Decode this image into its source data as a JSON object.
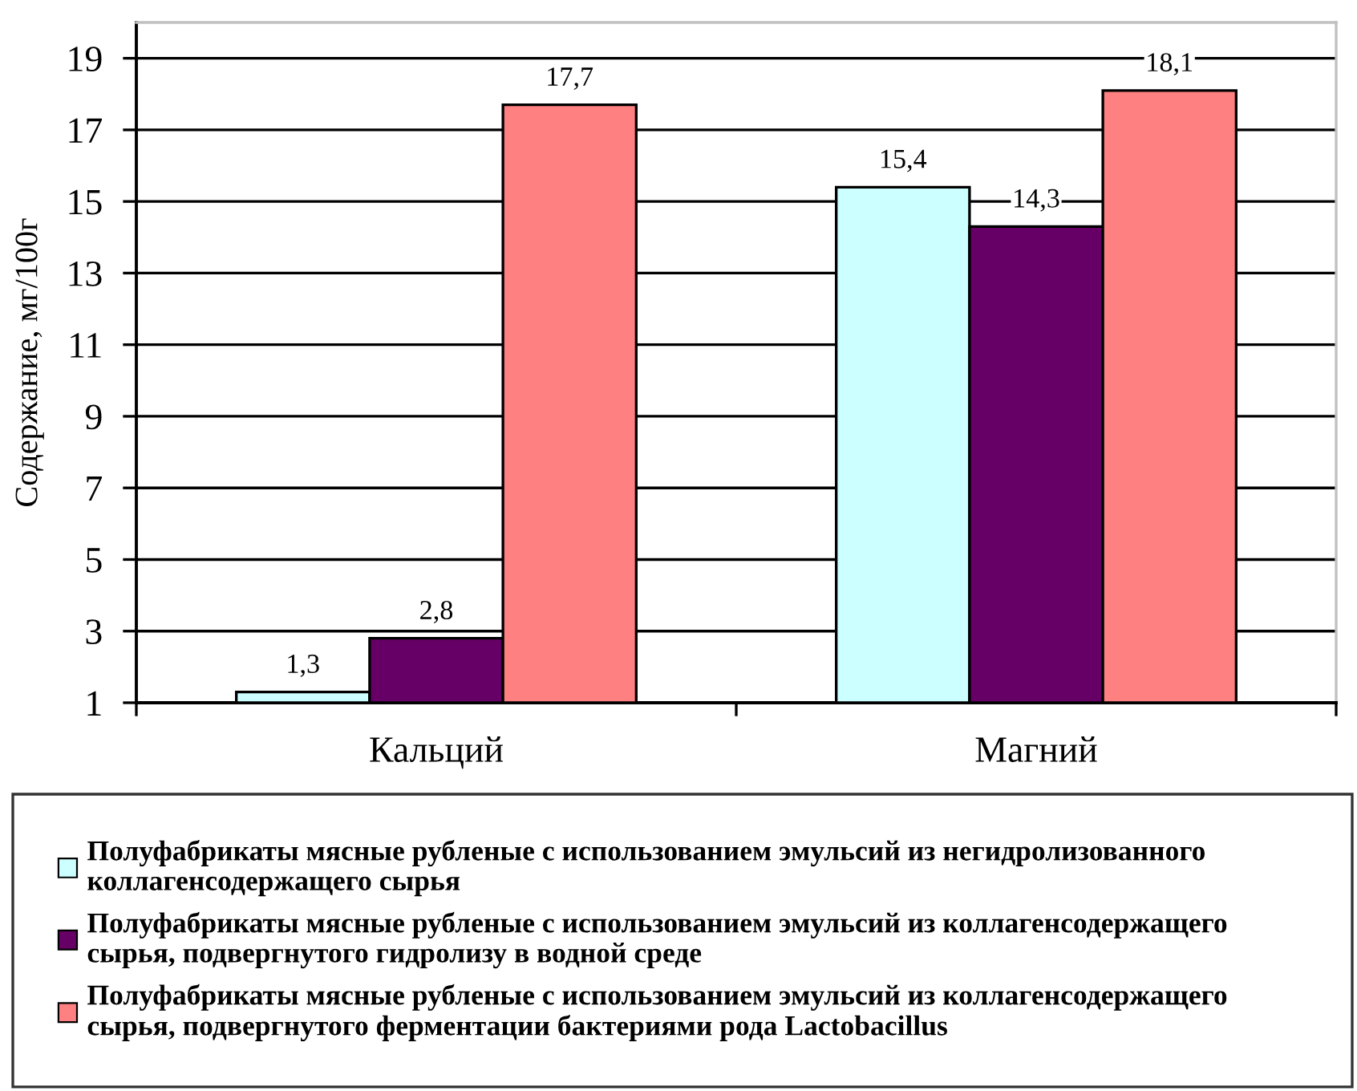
{
  "chart_data": {
    "type": "bar",
    "ylabel": "Содержание, мг/100г",
    "categories": [
      "Кальций",
      "Магний"
    ],
    "series": [
      {
        "name": "Полуфабрикаты мясные рубленые с использованием эмульсий из негидролизованного коллагенсодержащего сырья",
        "color": "#ccffff",
        "values": [
          1.3,
          15.4
        ],
        "value_labels": [
          "1,3",
          "15,4"
        ]
      },
      {
        "name": "Полуфабрикаты мясные рубленые с использованием эмульсий из коллагенсодержащего сырья, подвергнутого гидролизу в водной среде",
        "color": "#660066",
        "values": [
          2.8,
          14.3
        ],
        "value_labels": [
          "2,8",
          "14,3"
        ]
      },
      {
        "name": "Полуфабрикаты мясные рубленые с использованием эмульсий из коллагенсодержащего сырья, подвергнутого ферментации бактериями рода Lactobacillus",
        "color": "#ff8080",
        "values": [
          17.7,
          18.1
        ],
        "value_labels": [
          "17,7",
          "18,1"
        ]
      }
    ],
    "ylim": [
      1,
      20
    ],
    "yticks": [
      1,
      3,
      5,
      7,
      9,
      11,
      13,
      15,
      17,
      19
    ],
    "grid": "y",
    "legend": "bottom"
  }
}
